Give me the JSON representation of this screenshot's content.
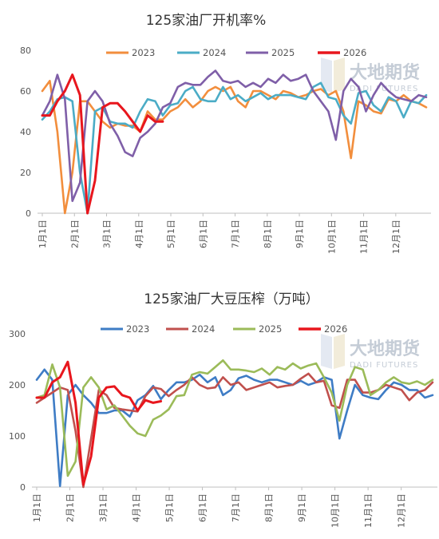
{
  "chart_data": [
    {
      "type": "line",
      "title": "125家油厂开机率%",
      "ylim": [
        0,
        80
      ],
      "yticks": [
        "0",
        "20",
        "40",
        "60",
        "80"
      ],
      "months": [
        "1月1日",
        "2月1日",
        "3月1日",
        "4月1日",
        "5月1日",
        "6月1日",
        "7月1日",
        "8月1日",
        "9月1日",
        "10月1日",
        "11月1日",
        "12月1日"
      ],
      "watermark": {
        "name": "大地期货",
        "sub": "DADI FUTURES"
      },
      "legend_position": "top",
      "series": [
        {
          "name": "2023",
          "color": "#f28e3d",
          "x": [
            0,
            1,
            2,
            3,
            4,
            5,
            6,
            7,
            8,
            9,
            10,
            11,
            12,
            13,
            14,
            15,
            16,
            17,
            18,
            19,
            20,
            21,
            22,
            23,
            24,
            25,
            26,
            27,
            28,
            29,
            30,
            31,
            32,
            33,
            34,
            35,
            36,
            37,
            38,
            39,
            40,
            41,
            42,
            43,
            44,
            45,
            46,
            47,
            48,
            49,
            50,
            51
          ],
          "values": [
            60,
            65,
            40,
            0,
            20,
            55,
            55,
            50,
            45,
            42,
            44,
            43,
            43,
            40,
            50,
            46,
            46,
            50,
            52,
            56,
            52,
            55,
            60,
            62,
            60,
            62,
            55,
            52,
            60,
            60,
            58,
            56,
            60,
            59,
            57,
            58,
            60,
            61,
            58,
            60,
            50,
            27,
            55,
            53,
            50,
            49,
            56,
            55,
            58,
            55,
            54,
            52
          ]
        },
        {
          "name": "2024",
          "color": "#4bacc6",
          "x": [
            0,
            1,
            2,
            3,
            4,
            5,
            6,
            7,
            8,
            9,
            10,
            11,
            12,
            13,
            14,
            15,
            16,
            17,
            18,
            19,
            20,
            21,
            22,
            23,
            24,
            25,
            26,
            27,
            28,
            29,
            30,
            31,
            32,
            33,
            34,
            35,
            36,
            37,
            38,
            39,
            40,
            41,
            42,
            43,
            44,
            45,
            46,
            47,
            48,
            49,
            50,
            51
          ],
          "values": [
            46,
            50,
            56,
            57,
            55,
            20,
            0,
            50,
            52,
            45,
            44,
            44,
            42,
            50,
            56,
            55,
            48,
            53,
            54,
            60,
            62,
            56,
            55,
            55,
            62,
            56,
            58,
            55,
            57,
            59,
            56,
            58,
            58,
            58,
            57,
            56,
            62,
            64,
            57,
            56,
            48,
            44,
            59,
            60,
            53,
            50,
            57,
            55,
            47,
            55,
            54,
            58
          ]
        },
        {
          "name": "2025",
          "color": "#7f5fa8",
          "x": [
            0,
            1,
            2,
            3,
            4,
            5,
            6,
            7,
            8,
            9,
            10,
            11,
            12,
            13,
            14,
            15,
            16,
            17,
            18,
            19,
            20,
            21,
            22,
            23,
            24,
            25,
            26,
            27,
            28,
            29,
            30,
            31,
            32,
            33,
            34,
            35,
            36,
            37,
            38,
            39,
            40,
            41,
            42,
            43,
            44,
            45,
            46,
            47,
            48,
            49,
            50,
            51
          ],
          "values": [
            48,
            55,
            68,
            56,
            6,
            15,
            55,
            60,
            55,
            44,
            38,
            30,
            28,
            37,
            40,
            44,
            52,
            54,
            62,
            64,
            63,
            63,
            67,
            70,
            65,
            64,
            65,
            62,
            64,
            62,
            66,
            64,
            68,
            65,
            66,
            68,
            60,
            55,
            50,
            36,
            60,
            66,
            62,
            50,
            58,
            64,
            60,
            57,
            56,
            55,
            58,
            57
          ]
        },
        {
          "name": "2026",
          "color": "#e8161d",
          "x": [
            0,
            1,
            2,
            3,
            4,
            5,
            6,
            7,
            8,
            9,
            10,
            11,
            12,
            13,
            14,
            15,
            16
          ],
          "values": [
            48,
            48,
            55,
            60,
            68,
            58,
            0,
            16,
            52,
            54,
            54,
            50,
            45,
            40,
            48,
            45,
            45
          ]
        }
      ]
    },
    {
      "type": "line",
      "title": "125家油厂大豆压榨（万吨）",
      "ylim": [
        0,
        300
      ],
      "yticks": [
        "0",
        "100",
        "200",
        "300"
      ],
      "months": [
        "1月1日",
        "2月1日",
        "3月1日",
        "4月1日",
        "5月1日",
        "6月1日",
        "7月1日",
        "8月1日",
        "9月1日",
        "10月1日",
        "11月1日",
        "12月1日"
      ],
      "watermark": {
        "name": "大地期货",
        "sub": "DADI FUTURES"
      },
      "legend_position": "top",
      "series": [
        {
          "name": "2023",
          "color": "#3e7cc5",
          "x": [
            0,
            1,
            2,
            3,
            4,
            5,
            6,
            7,
            8,
            9,
            10,
            11,
            12,
            13,
            14,
            15,
            16,
            17,
            18,
            19,
            20,
            21,
            22,
            23,
            24,
            25,
            26,
            27,
            28,
            29,
            30,
            31,
            32,
            33,
            34,
            35,
            36,
            37,
            38,
            39,
            40,
            41,
            42,
            43,
            44,
            45,
            46,
            47,
            48,
            49,
            50,
            51
          ],
          "values": [
            210,
            230,
            210,
            2,
            180,
            200,
            180,
            165,
            145,
            145,
            150,
            150,
            138,
            170,
            180,
            198,
            172,
            190,
            205,
            205,
            210,
            220,
            205,
            215,
            180,
            190,
            213,
            218,
            210,
            205,
            210,
            210,
            205,
            200,
            208,
            200,
            205,
            215,
            210,
            95,
            150,
            200,
            180,
            175,
            172,
            190,
            205,
            200,
            190,
            190,
            175,
            180
          ]
        },
        {
          "name": "2024",
          "color": "#c0504d",
          "x": [
            0,
            1,
            2,
            3,
            4,
            5,
            6,
            7,
            8,
            9,
            10,
            11,
            12,
            13,
            14,
            15,
            16,
            17,
            18,
            19,
            20,
            21,
            22,
            23,
            24,
            25,
            26,
            27,
            28,
            29,
            30,
            31,
            32,
            33,
            34,
            35,
            36,
            37,
            38,
            39,
            40,
            41,
            42,
            43,
            44,
            45,
            46,
            47,
            48,
            49,
            50,
            51
          ],
          "values": [
            165,
            175,
            185,
            195,
            190,
            110,
            0,
            95,
            190,
            180,
            155,
            152,
            150,
            148,
            178,
            195,
            192,
            178,
            190,
            200,
            215,
            200,
            193,
            195,
            215,
            200,
            205,
            190,
            195,
            200,
            205,
            195,
            198,
            200,
            212,
            222,
            205,
            208,
            160,
            155,
            210,
            210,
            185,
            185,
            190,
            200,
            195,
            190,
            170,
            185,
            190,
            205
          ]
        },
        {
          "name": "2025",
          "color": "#9bbb59",
          "x": [
            0,
            1,
            2,
            3,
            4,
            5,
            6,
            7,
            8,
            9,
            10,
            11,
            12,
            13,
            14,
            15,
            16,
            17,
            18,
            19,
            20,
            21,
            22,
            23,
            24,
            25,
            26,
            27,
            28,
            29,
            30,
            31,
            32,
            33,
            34,
            35,
            36,
            37,
            38,
            39,
            40,
            41,
            42,
            43,
            44,
            45,
            46,
            47,
            48,
            49,
            50,
            51
          ],
          "values": [
            175,
            180,
            240,
            195,
            22,
            50,
            195,
            215,
            195,
            152,
            160,
            140,
            120,
            105,
            100,
            132,
            140,
            152,
            178,
            180,
            220,
            225,
            222,
            235,
            248,
            230,
            230,
            228,
            225,
            232,
            220,
            235,
            230,
            242,
            232,
            238,
            242,
            215,
            185,
            130,
            200,
            235,
            230,
            180,
            190,
            205,
            215,
            205,
            202,
            207,
            200,
            210
          ]
        },
        {
          "name": "2026",
          "color": "#e8161d",
          "x": [
            0,
            1,
            2,
            3,
            4,
            5,
            6,
            7,
            8,
            9,
            10,
            11,
            12,
            13,
            14,
            15,
            16
          ],
          "values": [
            175,
            175,
            205,
            215,
            245,
            165,
            5,
            60,
            175,
            195,
            197,
            180,
            175,
            150,
            170,
            165,
            168
          ]
        }
      ]
    }
  ]
}
